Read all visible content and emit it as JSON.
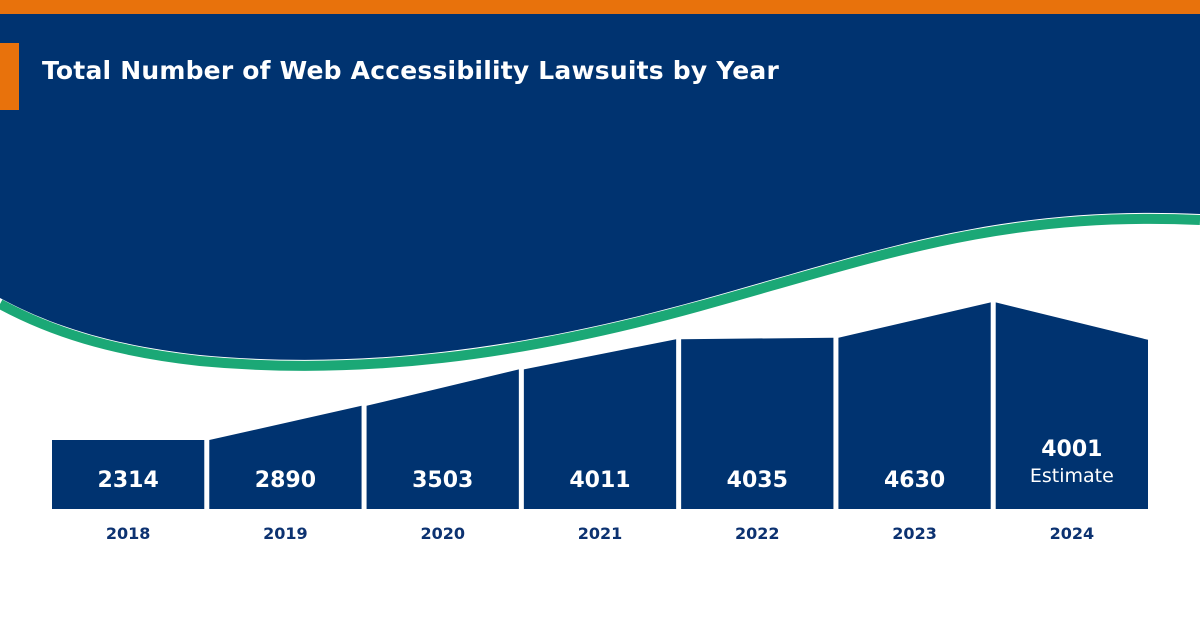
{
  "colors": {
    "navy": "#003370",
    "orange": "#e8720c",
    "green": "#1ba876",
    "label_navy": "#0c3271"
  },
  "chart_data": {
    "type": "bar",
    "title": "Total Number of Web Accessibility Lawsuits by Year",
    "categories": [
      "2018",
      "2019",
      "2020",
      "2021",
      "2022",
      "2023",
      "2024"
    ],
    "values": [
      2314,
      2890,
      3503,
      4011,
      4035,
      4630,
      4001
    ],
    "value_labels": [
      "2314",
      "2890",
      "3503",
      "4011",
      "4035",
      "4630",
      "4001"
    ],
    "notes": [
      "",
      "",
      "",
      "",
      "",
      "",
      "Estimate"
    ],
    "xlabel": "",
    "ylabel": "",
    "grid": false,
    "legend": "none"
  }
}
